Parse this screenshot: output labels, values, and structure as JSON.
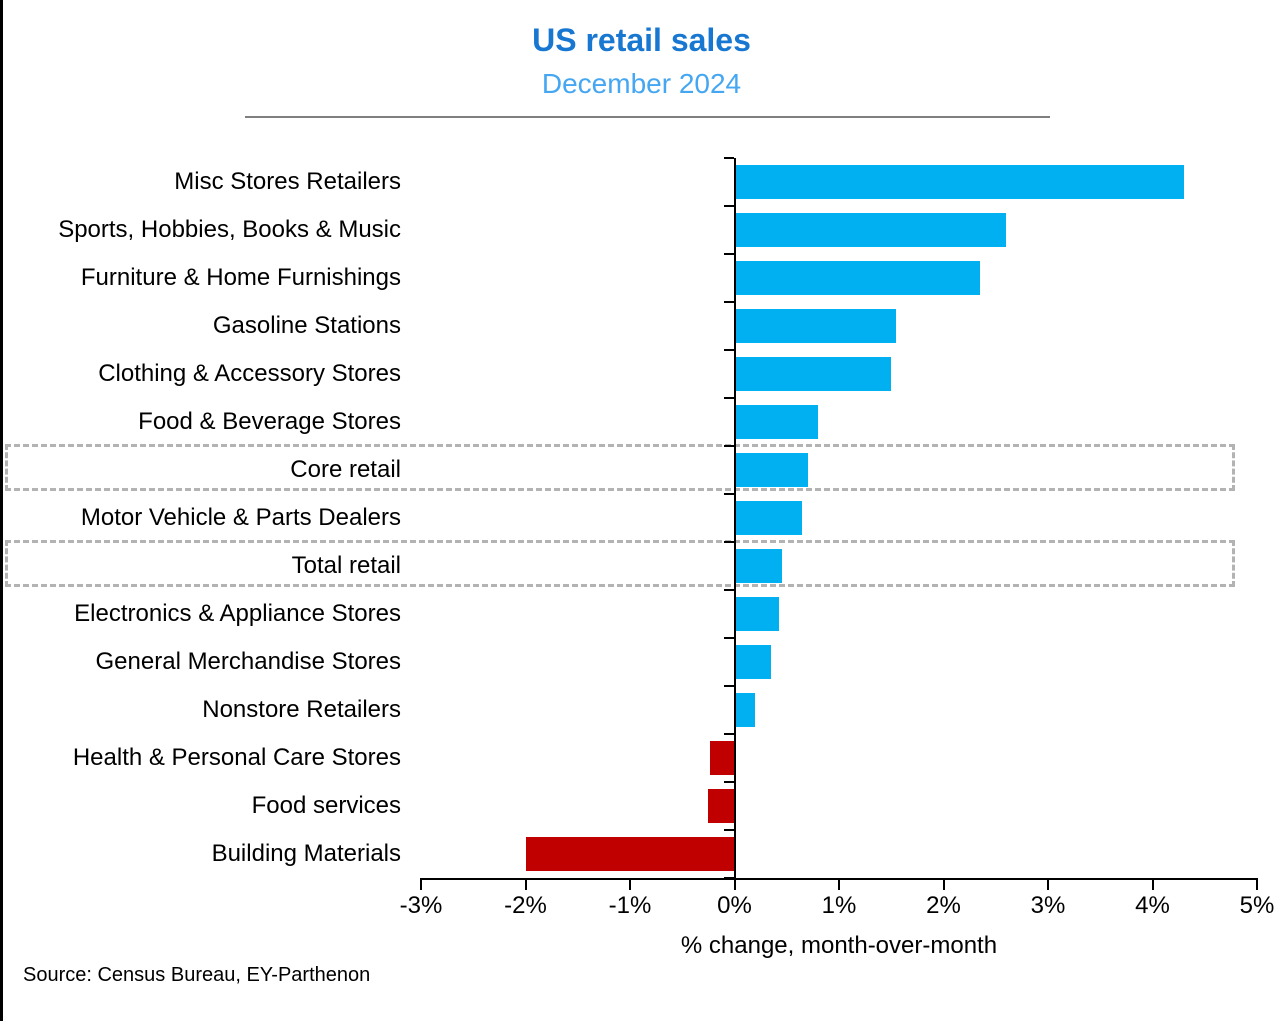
{
  "chart_data": {
    "type": "bar",
    "orientation": "horizontal",
    "title": "US retail sales",
    "subtitle": "December 2024",
    "xlabel": "% change, month-over-month",
    "source": "Source: Census Bureau, EY-Parthenon",
    "xlim": [
      -3,
      5
    ],
    "x_tick_step": 1,
    "x_tick_labels": [
      "-3%",
      "-2%",
      "-1%",
      "0%",
      "1%",
      "2%",
      "3%",
      "4%",
      "5%"
    ],
    "grid": false,
    "legend": "none",
    "categories": [
      "Misc Stores Retailers",
      "Sports, Hobbies, Books & Music",
      "Furniture & Home Furnishings",
      "Gasoline Stations",
      "Clothing & Accessory Stores",
      "Food & Beverage Stores",
      "Core retail",
      "Motor Vehicle & Parts Dealers",
      "Total retail",
      "Electronics & Appliance Stores",
      "General Merchandise Stores",
      "Nonstore Retailers",
      "Health & Personal Care Stores",
      "Food services",
      "Building Materials"
    ],
    "values": [
      4.3,
      2.6,
      2.35,
      1.55,
      1.5,
      0.8,
      0.7,
      0.65,
      0.45,
      0.43,
      0.35,
      0.2,
      -0.23,
      -0.25,
      -2.0
    ],
    "highlighted_rows": [
      "Core retail",
      "Total retail"
    ],
    "colors": {
      "bar_positive": "#00b0f0",
      "bar_negative": "#c00000",
      "title": "#1777d1",
      "subtitle": "#45a6f2",
      "highlight_dash": "#b3b3b3",
      "axis": "#000000",
      "divider": "#7f7f7f"
    }
  }
}
